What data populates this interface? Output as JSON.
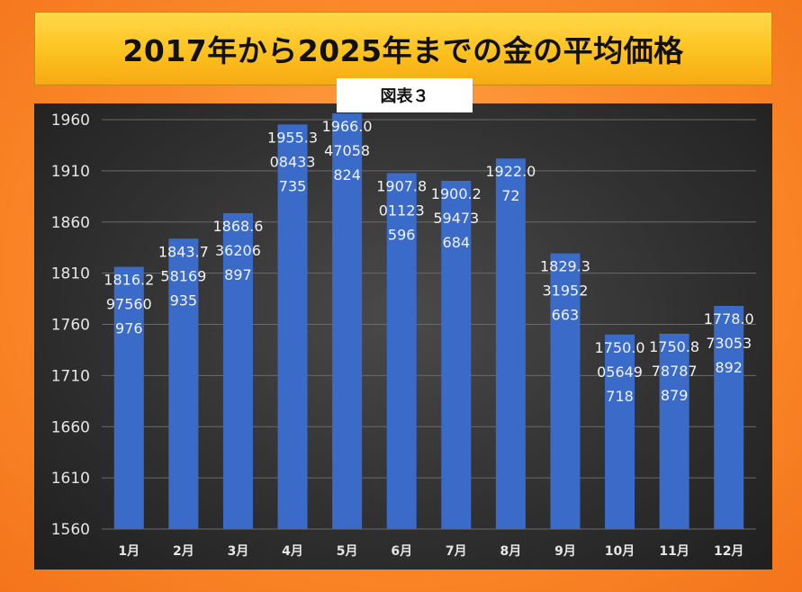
{
  "title": "2017年から2025年までの金の平均価格",
  "figure_label": "図表３",
  "colors": {
    "bar": "#3a6bc9",
    "panel_bg": "#2f2f2f",
    "frame": "#f98a2b",
    "title_bg": "#fcc21f",
    "gridline": "#6a6a6a",
    "text": "#e6e6e6"
  },
  "chart_data": {
    "type": "bar",
    "title": "2017年から2025年までの金の平均価格",
    "categories": [
      "1月",
      "2月",
      "3月",
      "4月",
      "5月",
      "6月",
      "7月",
      "8月",
      "9月",
      "10月",
      "11月",
      "12月"
    ],
    "values": [
      1816.2,
      1843.7,
      1868.6,
      1955.3,
      1966.0,
      1907.8,
      1900.2,
      1922.0,
      1829.3,
      1750.0,
      1750.8,
      1778.0
    ],
    "data_labels": [
      [
        "1816.2",
        "97560",
        "976"
      ],
      [
        "1843.7",
        "58169",
        "935"
      ],
      [
        "1868.6",
        "36206",
        "897"
      ],
      [
        "1955.3",
        "08433",
        "735"
      ],
      [
        "1966.0",
        "47058",
        "824"
      ],
      [
        "1907.8",
        "01123",
        "596"
      ],
      [
        "1900.2",
        "59473",
        "684"
      ],
      [
        "1922.0",
        "72"
      ],
      [
        "1829.3",
        "31952",
        "663"
      ],
      [
        "1750.0",
        "05649",
        "718"
      ],
      [
        "1750.8",
        "78787",
        "879"
      ],
      [
        "1778.0",
        "73053",
        "892"
      ]
    ],
    "y_ticks": [
      "1560",
      "1610",
      "1660",
      "1710",
      "1760",
      "1810",
      "1860",
      "1910",
      "1960"
    ],
    "ylim": [
      1560,
      1960
    ],
    "xlabel": "",
    "ylabel": "",
    "grid": true,
    "legend": "none"
  }
}
